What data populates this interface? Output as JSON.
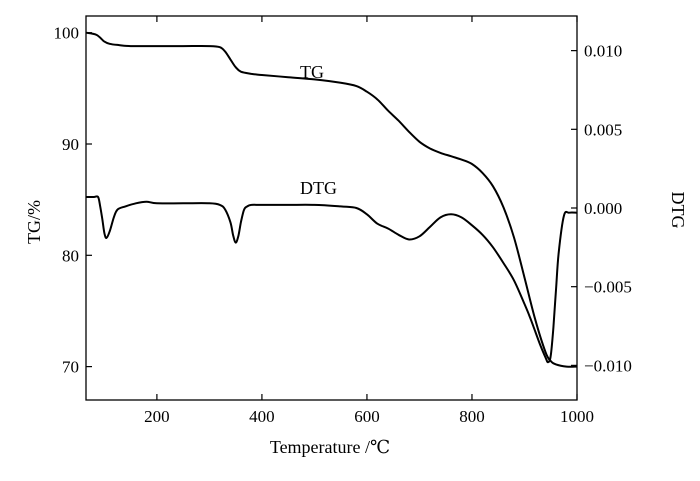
{
  "chart_data": {
    "type": "line",
    "xlabel": "Temperature /℃",
    "ylabel_left": "TG/%",
    "ylabel_right": "DTG",
    "xlim": [
      65,
      1000
    ],
    "ylim_left": [
      67,
      101.5
    ],
    "ylim_right": [
      -0.0122,
      0.0122
    ],
    "x_ticks": [
      200,
      400,
      600,
      800,
      1000
    ],
    "y_ticks_left": [
      70,
      80,
      90,
      100
    ],
    "y_ticks_right": [
      {
        "value": 0.01,
        "label": "0.010"
      },
      {
        "value": 0.005,
        "label": "0.005"
      },
      {
        "value": 0.0,
        "label": "0.000"
      },
      {
        "value": -0.005,
        "label": "−0.005"
      },
      {
        "value": -0.01,
        "label": "−0.010"
      }
    ],
    "grid": false,
    "series": [
      {
        "name": "TG",
        "axis": "left",
        "x": [
          65,
          85,
          100,
          110,
          125,
          150,
          200,
          250,
          300,
          320,
          330,
          340,
          350,
          360,
          380,
          400,
          450,
          500,
          550,
          580,
          600,
          620,
          640,
          660,
          680,
          700,
          720,
          740,
          760,
          780,
          800,
          820,
          840,
          860,
          880,
          900,
          920,
          940,
          950,
          960,
          980,
          1000
        ],
        "y": [
          100.0,
          99.8,
          99.2,
          99.0,
          98.9,
          98.8,
          98.8,
          98.8,
          98.8,
          98.7,
          98.3,
          97.6,
          96.9,
          96.5,
          96.3,
          96.2,
          96.0,
          95.8,
          95.5,
          95.2,
          94.7,
          94.0,
          93.0,
          92.1,
          91.1,
          90.2,
          89.6,
          89.2,
          88.9,
          88.6,
          88.2,
          87.4,
          86.2,
          84.3,
          81.6,
          78.0,
          74.3,
          71.3,
          70.5,
          70.2,
          70.0,
          70.0
        ]
      },
      {
        "name": "DTG",
        "axis": "right",
        "x": [
          65,
          80,
          88,
          92,
          96,
          100,
          104,
          110,
          118,
          125,
          140,
          160,
          180,
          200,
          250,
          300,
          320,
          330,
          340,
          345,
          350,
          355,
          360,
          366,
          372,
          380,
          400,
          450,
          500,
          550,
          580,
          600,
          620,
          640,
          660,
          680,
          700,
          720,
          740,
          760,
          780,
          800,
          820,
          840,
          860,
          880,
          900,
          910,
          920,
          930,
          940,
          945,
          950,
          955,
          960,
          965,
          975,
          985,
          1000
        ],
        "y": [
          0.0007,
          0.0007,
          0.0007,
          0.0001,
          -0.0007,
          -0.0016,
          -0.0019,
          -0.0015,
          -0.0006,
          -0.0001,
          0.0001,
          0.0003,
          0.0004,
          0.0003,
          0.0003,
          0.0003,
          0.0002,
          -0.0001,
          -0.0009,
          -0.0017,
          -0.0022,
          -0.0018,
          -0.0009,
          -0.0001,
          0.0001,
          0.0002,
          0.0002,
          0.0002,
          0.0002,
          0.0001,
          0.0,
          -0.0004,
          -0.001,
          -0.0013,
          -0.0017,
          -0.002,
          -0.0018,
          -0.0012,
          -0.0006,
          -0.0004,
          -0.0006,
          -0.0011,
          -0.0017,
          -0.0025,
          -0.0035,
          -0.0046,
          -0.0061,
          -0.0069,
          -0.0078,
          -0.0087,
          -0.0095,
          -0.0098,
          -0.0094,
          -0.0076,
          -0.0052,
          -0.0029,
          -0.0005,
          -0.0003,
          -0.0003
        ]
      }
    ],
    "annotations": [
      {
        "text": "TG",
        "x": 340,
        "y_axis": "left",
        "y": 98.5
      },
      {
        "text": "DTG",
        "x": 340,
        "y_axis": "left",
        "y": 86.5
      }
    ]
  }
}
